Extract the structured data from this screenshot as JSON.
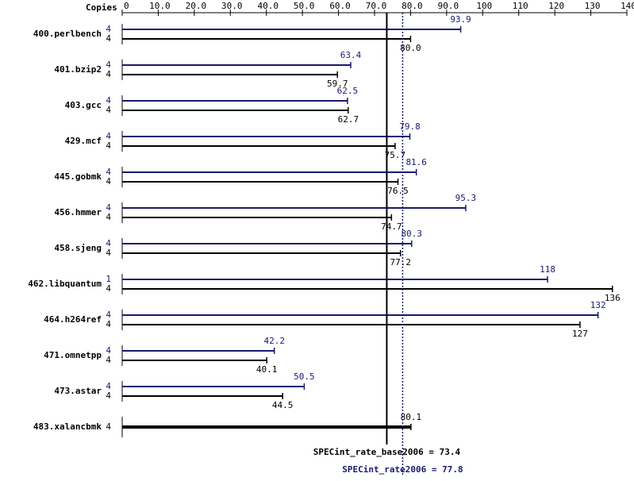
{
  "chart_data": {
    "type": "bar",
    "orientation": "horizontal",
    "copies_header": "Copies",
    "categories": [
      "400.perlbench",
      "401.bzip2",
      "403.gcc",
      "429.mcf",
      "445.gobmk",
      "456.hmmer",
      "458.sjeng",
      "462.libquantum",
      "464.h264ref",
      "471.omnetpp",
      "473.astar",
      "483.xalancbmk"
    ],
    "series": [
      {
        "color": "#191970",
        "values": [
          93.9,
          63.4,
          62.5,
          79.8,
          81.6,
          95.3,
          80.3,
          118,
          132,
          42.2,
          50.5,
          null
        ],
        "value_labels": [
          "93.9",
          "63.4",
          "62.5",
          "79.8",
          "81.6",
          "95.3",
          "80.3",
          "118",
          "132",
          "42.2",
          "50.5",
          null
        ],
        "copies": [
          4,
          4,
          4,
          4,
          4,
          4,
          4,
          1,
          4,
          4,
          4,
          null
        ]
      },
      {
        "color": "#000000",
        "values": [
          80.0,
          59.7,
          62.7,
          75.7,
          76.5,
          74.7,
          77.2,
          136,
          127,
          40.1,
          44.5,
          80.1
        ],
        "value_labels": [
          "80.0",
          "59.7",
          "62.7",
          "75.7",
          "76.5",
          "74.7",
          "77.2",
          "136",
          "127",
          "40.1",
          "44.5",
          "80.1"
        ],
        "copies": [
          4,
          4,
          4,
          4,
          4,
          4,
          4,
          4,
          4,
          4,
          4,
          4
        ]
      }
    ],
    "xlim": [
      0,
      140
    ],
    "xticks": [
      0,
      {
        "value": 10,
        "label": "10.0"
      },
      {
        "value": 20,
        "label": "20.0"
      },
      {
        "value": 30,
        "label": "30.0"
      },
      {
        "value": 40,
        "label": "40.0"
      },
      {
        "value": 50,
        "label": "50.0"
      },
      {
        "value": 60,
        "label": "60.0"
      },
      {
        "value": 70,
        "label": "70.0"
      },
      {
        "value": 80,
        "label": "80.0"
      },
      {
        "value": 90,
        "label": "90.0"
      },
      100,
      110,
      120,
      130,
      140
    ],
    "reference_lines": [
      {
        "label": "SPECint_rate_base2006 = 73.4",
        "value": 73.4,
        "color": "#000000",
        "dashed": false
      },
      {
        "label": "SPECint_rate2006 = 77.8",
        "value": 77.8,
        "color": "#191970",
        "dashed": true
      }
    ]
  }
}
